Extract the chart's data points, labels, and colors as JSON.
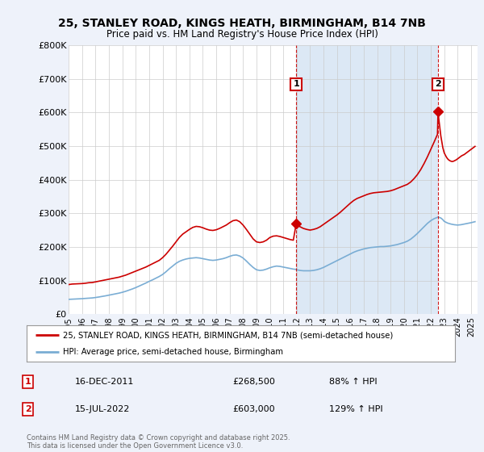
{
  "title_line1": "25, STANLEY ROAD, KINGS HEATH, BIRMINGHAM, B14 7NB",
  "title_line2": "Price paid vs. HM Land Registry's House Price Index (HPI)",
  "bg_color": "#eef2fa",
  "plot_bg_color": "#ffffff",
  "highlight_bg": "#dce8f5",
  "red_color": "#cc0000",
  "blue_color": "#7aadd4",
  "ylim": [
    0,
    800000
  ],
  "yticks": [
    0,
    100000,
    200000,
    300000,
    400000,
    500000,
    600000,
    700000,
    800000
  ],
  "ytick_labels": [
    "£0",
    "£100K",
    "£200K",
    "£300K",
    "£400K",
    "£500K",
    "£600K",
    "£700K",
    "£800K"
  ],
  "annotation1": {
    "label": "1",
    "date_str": "16-DEC-2011",
    "price": 268500,
    "hpi_pct": "88% ↑ HPI"
  },
  "annotation2": {
    "label": "2",
    "date_str": "15-JUL-2022",
    "price": 603000,
    "hpi_pct": "129% ↑ HPI"
  },
  "legend_line1": "25, STANLEY ROAD, KINGS HEATH, BIRMINGHAM, B14 7NB (semi-detached house)",
  "legend_line2": "HPI: Average price, semi-detached house, Birmingham",
  "footer": "Contains HM Land Registry data © Crown copyright and database right 2025.\nThis data is licensed under the Open Government Licence v3.0.",
  "vline1_x": 2011.96,
  "vline2_x": 2022.54,
  "marker1_x": 2011.96,
  "marker1_y": 268500,
  "marker2_x": 2022.54,
  "marker2_y": 603000,
  "xlim": [
    1995.0,
    2025.5
  ],
  "xticks": [
    1995,
    1996,
    1997,
    1998,
    1999,
    2000,
    2001,
    2002,
    2003,
    2004,
    2005,
    2006,
    2007,
    2008,
    2009,
    2010,
    2011,
    2012,
    2013,
    2014,
    2015,
    2016,
    2017,
    2018,
    2019,
    2020,
    2021,
    2022,
    2023,
    2024,
    2025
  ],
  "red_prices": [
    [
      1995.0,
      88000
    ],
    [
      1995.25,
      89500
    ],
    [
      1995.5,
      90000
    ],
    [
      1995.75,
      90500
    ],
    [
      1996.0,
      91000
    ],
    [
      1996.25,
      92000
    ],
    [
      1996.5,
      93500
    ],
    [
      1996.75,
      94000
    ],
    [
      1997.0,
      96000
    ],
    [
      1997.25,
      98000
    ],
    [
      1997.5,
      100000
    ],
    [
      1997.75,
      102000
    ],
    [
      1998.0,
      104000
    ],
    [
      1998.25,
      106000
    ],
    [
      1998.5,
      108000
    ],
    [
      1998.75,
      110000
    ],
    [
      1999.0,
      113000
    ],
    [
      1999.25,
      116000
    ],
    [
      1999.5,
      120000
    ],
    [
      1999.75,
      124000
    ],
    [
      2000.0,
      128000
    ],
    [
      2000.25,
      132000
    ],
    [
      2000.5,
      136000
    ],
    [
      2000.75,
      140000
    ],
    [
      2001.0,
      145000
    ],
    [
      2001.25,
      150000
    ],
    [
      2001.5,
      155000
    ],
    [
      2001.75,
      160000
    ],
    [
      2002.0,
      168000
    ],
    [
      2002.25,
      178000
    ],
    [
      2002.5,
      190000
    ],
    [
      2002.75,
      202000
    ],
    [
      2003.0,
      215000
    ],
    [
      2003.25,
      228000
    ],
    [
      2003.5,
      238000
    ],
    [
      2003.75,
      245000
    ],
    [
      2004.0,
      252000
    ],
    [
      2004.25,
      258000
    ],
    [
      2004.5,
      261000
    ],
    [
      2004.75,
      260000
    ],
    [
      2005.0,
      257000
    ],
    [
      2005.25,
      253000
    ],
    [
      2005.5,
      250000
    ],
    [
      2005.75,
      249000
    ],
    [
      2006.0,
      251000
    ],
    [
      2006.25,
      255000
    ],
    [
      2006.5,
      260000
    ],
    [
      2006.75,
      265000
    ],
    [
      2007.0,
      272000
    ],
    [
      2007.25,
      278000
    ],
    [
      2007.5,
      280000
    ],
    [
      2007.75,
      275000
    ],
    [
      2008.0,
      265000
    ],
    [
      2008.25,
      252000
    ],
    [
      2008.5,
      238000
    ],
    [
      2008.75,
      224000
    ],
    [
      2009.0,
      215000
    ],
    [
      2009.25,
      213000
    ],
    [
      2009.5,
      215000
    ],
    [
      2009.75,
      220000
    ],
    [
      2010.0,
      228000
    ],
    [
      2010.25,
      232000
    ],
    [
      2010.5,
      233000
    ],
    [
      2010.75,
      231000
    ],
    [
      2011.0,
      228000
    ],
    [
      2011.25,
      225000
    ],
    [
      2011.5,
      222000
    ],
    [
      2011.75,
      220000
    ],
    [
      2011.96,
      268500
    ],
    [
      2012.0,
      265000
    ],
    [
      2012.25,
      260000
    ],
    [
      2012.5,
      255000
    ],
    [
      2012.75,
      252000
    ],
    [
      2013.0,
      250000
    ],
    [
      2013.25,
      252000
    ],
    [
      2013.5,
      255000
    ],
    [
      2013.75,
      260000
    ],
    [
      2014.0,
      267000
    ],
    [
      2014.25,
      274000
    ],
    [
      2014.5,
      281000
    ],
    [
      2014.75,
      288000
    ],
    [
      2015.0,
      295000
    ],
    [
      2015.25,
      303000
    ],
    [
      2015.5,
      312000
    ],
    [
      2015.75,
      321000
    ],
    [
      2016.0,
      330000
    ],
    [
      2016.25,
      338000
    ],
    [
      2016.5,
      344000
    ],
    [
      2016.75,
      348000
    ],
    [
      2017.0,
      352000
    ],
    [
      2017.25,
      356000
    ],
    [
      2017.5,
      359000
    ],
    [
      2017.75,
      361000
    ],
    [
      2018.0,
      362000
    ],
    [
      2018.25,
      363000
    ],
    [
      2018.5,
      364000
    ],
    [
      2018.75,
      365000
    ],
    [
      2019.0,
      367000
    ],
    [
      2019.25,
      370000
    ],
    [
      2019.5,
      374000
    ],
    [
      2019.75,
      378000
    ],
    [
      2020.0,
      382000
    ],
    [
      2020.25,
      386000
    ],
    [
      2020.5,
      393000
    ],
    [
      2020.75,
      403000
    ],
    [
      2021.0,
      415000
    ],
    [
      2021.25,
      430000
    ],
    [
      2021.5,
      448000
    ],
    [
      2021.75,
      468000
    ],
    [
      2022.0,
      490000
    ],
    [
      2022.25,
      512000
    ],
    [
      2022.5,
      535000
    ],
    [
      2022.54,
      603000
    ],
    [
      2022.6,
      580000
    ],
    [
      2022.75,
      530000
    ],
    [
      2022.9,
      495000
    ],
    [
      2023.0,
      480000
    ],
    [
      2023.1,
      472000
    ],
    [
      2023.2,
      465000
    ],
    [
      2023.3,
      460000
    ],
    [
      2023.4,
      457000
    ],
    [
      2023.5,
      455000
    ],
    [
      2023.6,
      454000
    ],
    [
      2023.7,
      455000
    ],
    [
      2023.8,
      457000
    ],
    [
      2023.9,
      459000
    ],
    [
      2024.0,
      462000
    ],
    [
      2024.1,
      465000
    ],
    [
      2024.2,
      468000
    ],
    [
      2024.3,
      471000
    ],
    [
      2024.4,
      473000
    ],
    [
      2024.5,
      475000
    ],
    [
      2024.6,
      478000
    ],
    [
      2024.7,
      481000
    ],
    [
      2024.8,
      484000
    ],
    [
      2024.9,
      487000
    ],
    [
      2025.0,
      490000
    ],
    [
      2025.1,
      493000
    ],
    [
      2025.2,
      496000
    ],
    [
      2025.3,
      499000
    ]
  ],
  "blue_prices": [
    [
      1995.0,
      44000
    ],
    [
      1995.25,
      44500
    ],
    [
      1995.5,
      45000
    ],
    [
      1995.75,
      45500
    ],
    [
      1996.0,
      46000
    ],
    [
      1996.25,
      46800
    ],
    [
      1996.5,
      47500
    ],
    [
      1996.75,
      48200
    ],
    [
      1997.0,
      49500
    ],
    [
      1997.25,
      51000
    ],
    [
      1997.5,
      52800
    ],
    [
      1997.75,
      54500
    ],
    [
      1998.0,
      56500
    ],
    [
      1998.25,
      58500
    ],
    [
      1998.5,
      60500
    ],
    [
      1998.75,
      62500
    ],
    [
      1999.0,
      65000
    ],
    [
      1999.25,
      68000
    ],
    [
      1999.5,
      71500
    ],
    [
      1999.75,
      75000
    ],
    [
      2000.0,
      79000
    ],
    [
      2000.25,
      83500
    ],
    [
      2000.5,
      88000
    ],
    [
      2000.75,
      92500
    ],
    [
      2001.0,
      97500
    ],
    [
      2001.25,
      102000
    ],
    [
      2001.5,
      107000
    ],
    [
      2001.75,
      112000
    ],
    [
      2002.0,
      118000
    ],
    [
      2002.25,
      126000
    ],
    [
      2002.5,
      135000
    ],
    [
      2002.75,
      143000
    ],
    [
      2003.0,
      151000
    ],
    [
      2003.25,
      157000
    ],
    [
      2003.5,
      161000
    ],
    [
      2003.75,
      164000
    ],
    [
      2004.0,
      166000
    ],
    [
      2004.25,
      167000
    ],
    [
      2004.5,
      168000
    ],
    [
      2004.75,
      167000
    ],
    [
      2005.0,
      165000
    ],
    [
      2005.25,
      163000
    ],
    [
      2005.5,
      161000
    ],
    [
      2005.75,
      160000
    ],
    [
      2006.0,
      161000
    ],
    [
      2006.25,
      163000
    ],
    [
      2006.5,
      165000
    ],
    [
      2006.75,
      168000
    ],
    [
      2007.0,
      172000
    ],
    [
      2007.25,
      175000
    ],
    [
      2007.5,
      176000
    ],
    [
      2007.75,
      173000
    ],
    [
      2008.0,
      167000
    ],
    [
      2008.25,
      158000
    ],
    [
      2008.5,
      148000
    ],
    [
      2008.75,
      139000
    ],
    [
      2009.0,
      132000
    ],
    [
      2009.25,
      130000
    ],
    [
      2009.5,
      131000
    ],
    [
      2009.75,
      134000
    ],
    [
      2010.0,
      138000
    ],
    [
      2010.25,
      141000
    ],
    [
      2010.5,
      143000
    ],
    [
      2010.75,
      142000
    ],
    [
      2011.0,
      140000
    ],
    [
      2011.25,
      138000
    ],
    [
      2011.5,
      136000
    ],
    [
      2011.75,
      134000
    ],
    [
      2011.96,
      133000
    ],
    [
      2012.0,
      132000
    ],
    [
      2012.25,
      130000
    ],
    [
      2012.5,
      129000
    ],
    [
      2012.75,
      129000
    ],
    [
      2013.0,
      129000
    ],
    [
      2013.25,
      130000
    ],
    [
      2013.5,
      132000
    ],
    [
      2013.75,
      135000
    ],
    [
      2014.0,
      139000
    ],
    [
      2014.25,
      144000
    ],
    [
      2014.5,
      149000
    ],
    [
      2014.75,
      154000
    ],
    [
      2015.0,
      159000
    ],
    [
      2015.25,
      164000
    ],
    [
      2015.5,
      169000
    ],
    [
      2015.75,
      174000
    ],
    [
      2016.0,
      179000
    ],
    [
      2016.25,
      184000
    ],
    [
      2016.5,
      188000
    ],
    [
      2016.75,
      191000
    ],
    [
      2017.0,
      194000
    ],
    [
      2017.25,
      196000
    ],
    [
      2017.5,
      198000
    ],
    [
      2017.75,
      199000
    ],
    [
      2018.0,
      200000
    ],
    [
      2018.25,
      201000
    ],
    [
      2018.5,
      201000
    ],
    [
      2018.75,
      202000
    ],
    [
      2019.0,
      203000
    ],
    [
      2019.25,
      205000
    ],
    [
      2019.5,
      207000
    ],
    [
      2019.75,
      210000
    ],
    [
      2020.0,
      213000
    ],
    [
      2020.25,
      217000
    ],
    [
      2020.5,
      223000
    ],
    [
      2020.75,
      231000
    ],
    [
      2021.0,
      240000
    ],
    [
      2021.25,
      250000
    ],
    [
      2021.5,
      260000
    ],
    [
      2021.75,
      270000
    ],
    [
      2022.0,
      278000
    ],
    [
      2022.25,
      284000
    ],
    [
      2022.5,
      288000
    ],
    [
      2022.54,
      289000
    ],
    [
      2022.75,
      286000
    ],
    [
      2022.9,
      281000
    ],
    [
      2023.0,
      276000
    ],
    [
      2023.25,
      271000
    ],
    [
      2023.5,
      268000
    ],
    [
      2023.75,
      266000
    ],
    [
      2024.0,
      265000
    ],
    [
      2024.25,
      266000
    ],
    [
      2024.5,
      268000
    ],
    [
      2024.75,
      270000
    ],
    [
      2025.0,
      272000
    ],
    [
      2025.3,
      275000
    ]
  ]
}
